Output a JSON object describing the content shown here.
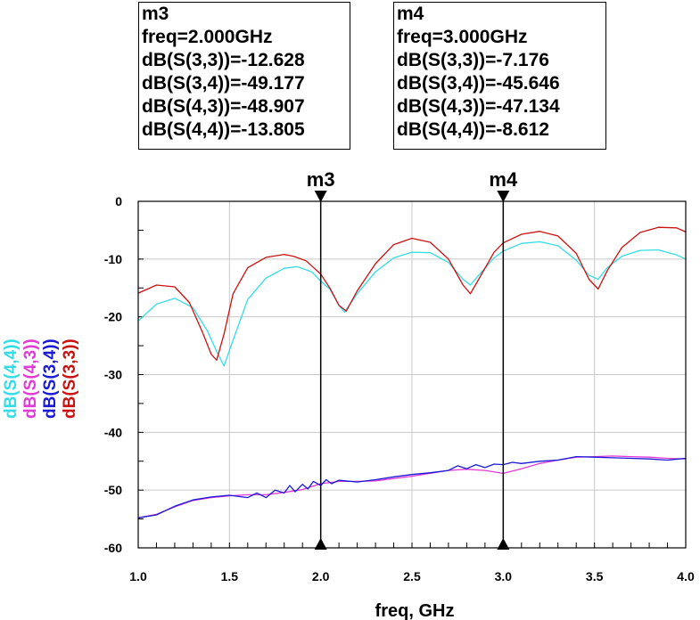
{
  "markers": [
    {
      "name": "m3",
      "freq_label": "freq=2.000GHz",
      "freq": 2.0,
      "readouts": [
        "dB(S(3,3))=-12.628",
        "dB(S(3,4))=-49.177",
        "dB(S(4,3))=-48.907",
        "dB(S(4,4))=-13.805"
      ]
    },
    {
      "name": "m4",
      "freq_label": "freq=3.000GHz",
      "freq": 3.0,
      "readouts": [
        "dB(S(3,3))=-7.176",
        "dB(S(3,4))=-45.646",
        "dB(S(4,3))=-47.134",
        "dB(S(4,4))=-8.612"
      ]
    }
  ],
  "chart_data": {
    "type": "line",
    "xlabel": "freq, GHz",
    "ylabel": "",
    "xlim": [
      1.0,
      4.0
    ],
    "ylim": [
      -60,
      0
    ],
    "xticks": [
      1.0,
      1.5,
      2.0,
      2.5,
      3.0,
      3.5,
      4.0
    ],
    "xtick_labels": [
      "1.0",
      "1.5",
      "2.0",
      "2.5",
      "3.0",
      "3.5",
      "4.0"
    ],
    "yticks": [
      0,
      -10,
      -20,
      -30,
      -40,
      -50,
      -60
    ],
    "ytick_labels": [
      "0",
      "-10",
      "-20",
      "-30",
      "-40",
      "-50",
      "-60"
    ],
    "grid": true,
    "legend_placement": "left, rotated",
    "series": [
      {
        "name": "dB(S(4,4))",
        "color": "#33dde6",
        "x": [
          1.0,
          1.1,
          1.2,
          1.3,
          1.38,
          1.43,
          1.47,
          1.52,
          1.6,
          1.7,
          1.8,
          1.87,
          1.95,
          2.0,
          2.05,
          2.1,
          2.13,
          2.2,
          2.3,
          2.4,
          2.5,
          2.6,
          2.7,
          2.78,
          2.82,
          2.86,
          2.95,
          3.0,
          3.1,
          3.2,
          3.3,
          3.4,
          3.47,
          3.52,
          3.57,
          3.65,
          3.75,
          3.85,
          3.95,
          4.0
        ],
        "y": [
          -20.7,
          -17.8,
          -16.8,
          -18.4,
          -22.5,
          -26.0,
          -28.5,
          -24.0,
          -17.0,
          -13.3,
          -11.6,
          -11.3,
          -12.2,
          -13.8,
          -15.2,
          -18.0,
          -19.2,
          -16.0,
          -12.2,
          -9.8,
          -8.8,
          -8.9,
          -10.6,
          -13.5,
          -14.5,
          -13.0,
          -9.8,
          -8.6,
          -7.3,
          -7.0,
          -7.7,
          -10.2,
          -12.8,
          -13.5,
          -11.5,
          -9.5,
          -8.5,
          -8.4,
          -9.3,
          -10.0
        ]
      },
      {
        "name": "dB(S(4,3))",
        "color": "#e23ad6",
        "x": [
          1.0,
          1.1,
          1.2,
          1.3,
          1.4,
          1.5,
          1.6,
          1.7,
          1.8,
          1.9,
          2.0,
          2.1,
          2.2,
          2.3,
          2.4,
          2.5,
          2.6,
          2.7,
          2.8,
          2.9,
          3.0,
          3.1,
          3.2,
          3.3,
          3.4,
          3.5,
          3.6,
          3.7,
          3.8,
          3.9,
          4.0
        ],
        "y": [
          -54.8,
          -54.2,
          -52.9,
          -51.8,
          -51.3,
          -51.0,
          -50.8,
          -50.8,
          -50.4,
          -49.9,
          -48.9,
          -48.5,
          -48.5,
          -48.4,
          -48.0,
          -47.6,
          -47.1,
          -46.6,
          -46.4,
          -46.6,
          -47.1,
          -46.3,
          -45.4,
          -44.8,
          -44.3,
          -44.2,
          -44.1,
          -44.2,
          -44.3,
          -44.5,
          -44.6
        ]
      },
      {
        "name": "dB(S(3,4))",
        "color": "#1a1ad6",
        "x": [
          1.0,
          1.1,
          1.2,
          1.3,
          1.4,
          1.5,
          1.6,
          1.65,
          1.7,
          1.75,
          1.8,
          1.83,
          1.86,
          1.9,
          1.93,
          1.96,
          2.0,
          2.03,
          2.06,
          2.1,
          2.2,
          2.3,
          2.4,
          2.5,
          2.6,
          2.7,
          2.75,
          2.8,
          2.85,
          2.9,
          2.95,
          3.0,
          3.05,
          3.1,
          3.2,
          3.3,
          3.4,
          3.5,
          3.6,
          3.7,
          3.8,
          3.9,
          4.0
        ],
        "y": [
          -54.8,
          -54.3,
          -52.8,
          -51.7,
          -51.2,
          -50.9,
          -51.3,
          -50.5,
          -51.3,
          -50.0,
          -50.5,
          -49.2,
          -50.3,
          -49.0,
          -49.8,
          -48.5,
          -49.2,
          -48.2,
          -48.9,
          -48.3,
          -48.6,
          -48.2,
          -47.7,
          -47.3,
          -47.0,
          -46.6,
          -45.8,
          -46.3,
          -45.6,
          -46.1,
          -45.5,
          -45.6,
          -45.2,
          -45.4,
          -45.0,
          -44.8,
          -44.2,
          -44.3,
          -44.4,
          -44.5,
          -44.6,
          -44.8,
          -44.5
        ]
      },
      {
        "name": "dB(S(3,3))",
        "color": "#cc1111",
        "x": [
          1.0,
          1.1,
          1.2,
          1.28,
          1.35,
          1.4,
          1.43,
          1.47,
          1.52,
          1.6,
          1.7,
          1.8,
          1.85,
          1.92,
          2.0,
          2.05,
          2.1,
          2.14,
          2.2,
          2.3,
          2.4,
          2.5,
          2.6,
          2.7,
          2.78,
          2.82,
          2.86,
          2.95,
          3.0,
          3.1,
          3.2,
          3.3,
          3.4,
          3.47,
          3.52,
          3.57,
          3.65,
          3.75,
          3.85,
          3.95,
          4.0
        ],
        "y": [
          -15.9,
          -14.5,
          -14.8,
          -17.5,
          -22.5,
          -26.5,
          -27.5,
          -23.0,
          -16.0,
          -11.5,
          -9.7,
          -9.2,
          -9.5,
          -10.3,
          -12.6,
          -15.0,
          -18.0,
          -19.0,
          -15.5,
          -10.8,
          -7.5,
          -6.4,
          -7.1,
          -10.0,
          -14.5,
          -16.0,
          -13.8,
          -8.8,
          -7.2,
          -5.7,
          -5.2,
          -6.0,
          -9.0,
          -13.5,
          -15.2,
          -12.0,
          -8.0,
          -5.4,
          -4.5,
          -4.6,
          -5.3
        ]
      }
    ]
  }
}
